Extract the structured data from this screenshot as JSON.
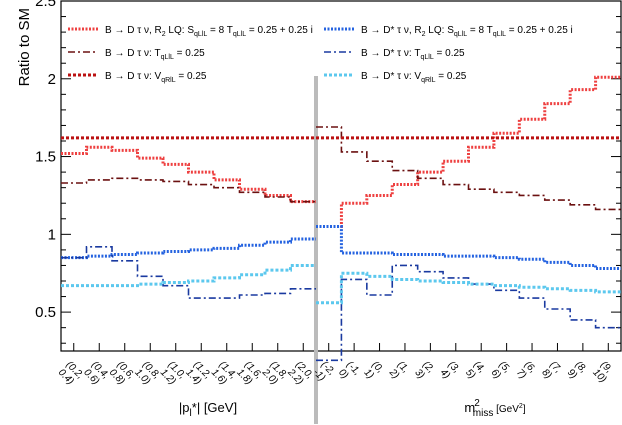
{
  "chart_data": {
    "type": "line",
    "ylabel": "Ratio to SM",
    "ylim": [
      0.25,
      2.5
    ],
    "yticks": [
      0.5,
      1,
      1.5,
      2,
      2.5
    ],
    "panels": [
      {
        "id": "left",
        "xlabel": "|p*_l| [GeV]",
        "xlabel_parts": [
          "|p",
          "l",
          "*| [GeV]"
        ],
        "categories": [
          "(0.2, 0.4)",
          "(0.4, 0.6)",
          "(0.6, 0.8)",
          "(0.8, 1.0)",
          "(1.0, 1.2)",
          "(1.2, 1.4)",
          "(1.4, 1.6)",
          "(1.6, 1.8)",
          "(1.8, 2.0)",
          "(2.0, 2.2)"
        ],
        "category_labels": [
          [
            "(0.2,",
            "0.4)"
          ],
          [
            "(0.4,",
            "0.6)"
          ],
          [
            "(0.6,",
            "0.8)"
          ],
          [
            "(0.8,",
            "1.0)"
          ],
          [
            "(1.0,",
            "1.2)"
          ],
          [
            "(1.2,",
            "1.4)"
          ],
          [
            "(1.4,",
            "1.6)"
          ],
          [
            "(1.6,",
            "1.8)"
          ],
          [
            "(1.8,",
            "2.0)"
          ],
          [
            "(2.0,",
            "2.2)"
          ]
        ],
        "series": [
          {
            "key": "d_r2",
            "values": [
              1.52,
              1.56,
              1.54,
              1.49,
              1.45,
              1.4,
              1.35,
              1.29,
              1.25,
              1.21
            ]
          },
          {
            "key": "d_t",
            "values": [
              1.33,
              1.35,
              1.36,
              1.35,
              1.34,
              1.32,
              1.3,
              1.27,
              1.24,
              1.21
            ]
          },
          {
            "key": "d_v",
            "values": [
              1.62,
              1.62,
              1.62,
              1.62,
              1.62,
              1.62,
              1.62,
              1.62,
              1.62,
              1.62
            ]
          },
          {
            "key": "ds_r2",
            "values": [
              0.85,
              0.86,
              0.87,
              0.88,
              0.89,
              0.9,
              0.91,
              0.93,
              0.95,
              0.97
            ]
          },
          {
            "key": "ds_t",
            "values": [
              0.85,
              0.92,
              0.83,
              0.73,
              0.67,
              0.59,
              0.59,
              0.61,
              0.62,
              0.65
            ]
          },
          {
            "key": "ds_v",
            "values": [
              0.67,
              0.67,
              0.67,
              0.68,
              0.69,
              0.7,
              0.72,
              0.74,
              0.77,
              0.8
            ]
          }
        ]
      },
      {
        "id": "right",
        "xlabel": "m²_miss [GeV²]",
        "xlabel_parts": [
          "m",
          "2",
          "miss",
          " [GeV",
          "2",
          "]"
        ],
        "categories": [
          "(-2, -1)",
          "(-1, 0)",
          "(0, 1)",
          "(1, 2)",
          "(2, 3)",
          "(3, 4)",
          "(4, 5)",
          "(5, 6)",
          "(6, 7)",
          "(7, 8)",
          "(8, 9)",
          "(9, 10)"
        ],
        "category_labels": [
          [
            "(-2,",
            "-1)"
          ],
          [
            "(-1,",
            "0)"
          ],
          [
            "(0,",
            "1)"
          ],
          [
            "(1,",
            "2)"
          ],
          [
            "(2,",
            "3)"
          ],
          [
            "(3,",
            "4)"
          ],
          [
            "(4,",
            "5)"
          ],
          [
            "(5,",
            "6)"
          ],
          [
            "(6,",
            "7)"
          ],
          [
            "(7,",
            "8)"
          ],
          [
            "(8,",
            "9)"
          ],
          [
            "(9,",
            "10)"
          ]
        ],
        "series": [
          {
            "key": "d_r2",
            "values": [
              1.05,
              1.2,
              1.25,
              1.32,
              1.4,
              1.47,
              1.56,
              1.65,
              1.74,
              1.84,
              1.93,
              2.01
            ]
          },
          {
            "key": "d_t",
            "values": [
              1.69,
              1.53,
              1.47,
              1.41,
              1.36,
              1.32,
              1.29,
              1.27,
              1.25,
              1.22,
              1.19,
              1.16
            ]
          },
          {
            "key": "d_v",
            "values": [
              1.62,
              1.62,
              1.62,
              1.62,
              1.62,
              1.62,
              1.62,
              1.62,
              1.62,
              1.62,
              1.62,
              1.62
            ]
          },
          {
            "key": "ds_r2",
            "values": [
              1.05,
              0.88,
              0.88,
              0.87,
              0.87,
              0.86,
              0.86,
              0.85,
              0.84,
              0.82,
              0.8,
              0.78
            ]
          },
          {
            "key": "ds_t",
            "values": [
              0.19,
              0.71,
              0.61,
              0.8,
              0.76,
              0.72,
              0.68,
              0.64,
              0.59,
              0.52,
              0.45,
              0.4
            ]
          },
          {
            "key": "ds_v",
            "values": [
              0.56,
              0.75,
              0.73,
              0.71,
              0.7,
              0.69,
              0.68,
              0.67,
              0.66,
              0.65,
              0.64,
              0.63
            ]
          }
        ]
      }
    ],
    "legend": {
      "position": "top",
      "entries": [
        {
          "key": "d_r2",
          "color": "#ee4040",
          "dash": "2,1.5",
          "width": 3,
          "parts": [
            "B → D τ ν, R",
            "2",
            " LQ: S",
            "qLlL",
            " = 8 T",
            "qLlL",
            " = 0.25 + 0.25 i"
          ]
        },
        {
          "key": "ds_r2",
          "color": "#2563e0",
          "dash": "2,1.5",
          "width": 3,
          "parts": [
            "B → D* τ ν, R",
            "2",
            " LQ: S",
            "qLlL",
            " = 8 T",
            "qLlL",
            " = 0.25 + 0.25 i"
          ]
        },
        {
          "key": "d_t",
          "color": "#6b1010",
          "dash": "7,3,2,3",
          "width": 1.6,
          "parts": [
            "B → D τ ν: T",
            "qLlL",
            " = 0.25"
          ]
        },
        {
          "key": "ds_t",
          "color": "#1a3aa0",
          "dash": "7,3,2,3",
          "width": 1.6,
          "parts": [
            "B → D* τ ν: T",
            "qLlL",
            " = 0.25"
          ]
        },
        {
          "key": "d_v",
          "color": "#bb1111",
          "dash": "3,2",
          "width": 3,
          "parts": [
            "B → D τ ν: V",
            "qRlL",
            " = 0.25"
          ]
        },
        {
          "key": "ds_v",
          "color": "#5cc8ee",
          "dash": "3,2",
          "width": 3,
          "parts": [
            "B → D* τ ν: V",
            "qRlL",
            " = 0.25"
          ]
        }
      ]
    }
  }
}
